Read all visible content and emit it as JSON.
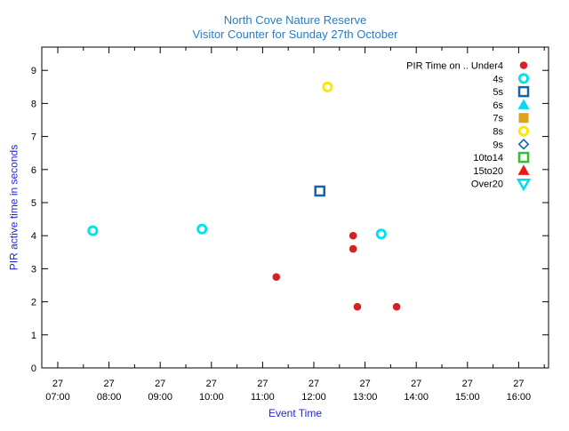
{
  "title": {
    "line1": "North Cove Nature Reserve",
    "line2": "Visitor Counter for Sunday 27th October"
  },
  "colors": {
    "title_text": "#2d7bbf",
    "axis_label_text": "#2525dd",
    "tick_text": "#000000",
    "border": "#000000",
    "background": "#ffffff"
  },
  "chart_data": {
    "type": "scatter",
    "title": "North Cove Nature Reserve",
    "subtitle": "Visitor Counter for Sunday 27th October",
    "xlabel": "Event Time",
    "ylabel": "PIR active time in seconds",
    "x_axis": {
      "tick_day_label": "27",
      "tick_times": [
        "07:00",
        "08:00",
        "09:00",
        "10:00",
        "11:00",
        "12:00",
        "13:00",
        "14:00",
        "15:00",
        "16:00"
      ],
      "minor_tick_interval_minutes": 30,
      "range": [
        "06:41",
        "16:36"
      ]
    },
    "y_axis": {
      "tick_labels": [
        "0",
        "1",
        "2",
        "3",
        "4",
        "5",
        "6",
        "7",
        "8",
        "9"
      ],
      "range": [
        0,
        9.7
      ]
    },
    "legend_position": "top-right-inside",
    "series": [
      {
        "name": "PIR Time on .. Under4",
        "marker": "circle-filled",
        "color": "#d42122",
        "points": [
          {
            "time": "11:16",
            "seconds": 2.75
          },
          {
            "time": "12:46",
            "seconds": 4.0
          },
          {
            "time": "12:46",
            "seconds": 3.6
          },
          {
            "time": "12:51",
            "seconds": 1.85
          },
          {
            "time": "13:37",
            "seconds": 1.85
          }
        ]
      },
      {
        "name": "4s",
        "marker": "circle-open",
        "color": "#00e2ea",
        "points": [
          {
            "time": "07:41",
            "seconds": 4.15
          },
          {
            "time": "09:49",
            "seconds": 4.2
          },
          {
            "time": "13:19",
            "seconds": 4.05
          }
        ]
      },
      {
        "name": "5s",
        "marker": "square-open",
        "color": "#1563a9",
        "points": [
          {
            "time": "12:07",
            "seconds": 5.35
          }
        ]
      },
      {
        "name": "6s",
        "marker": "triangle-up-filled",
        "color": "#00dcee",
        "points": []
      },
      {
        "name": "7s",
        "marker": "square-filled",
        "color": "#dfa118",
        "points": []
      },
      {
        "name": "8s",
        "marker": "circle-open",
        "color": "#ffe800",
        "points": [
          {
            "time": "12:16",
            "seconds": 8.5
          }
        ]
      },
      {
        "name": "9s",
        "marker": "diamond-open",
        "color": "#1563a9",
        "points": []
      },
      {
        "name": "10to14",
        "marker": "square-open",
        "color": "#2cc42c",
        "points": []
      },
      {
        "name": "15to20",
        "marker": "triangle-up-filled",
        "color": "#ee1717",
        "points": []
      },
      {
        "name": "Over20",
        "marker": "triangle-down-open",
        "color": "#00dcee",
        "points": []
      }
    ]
  }
}
